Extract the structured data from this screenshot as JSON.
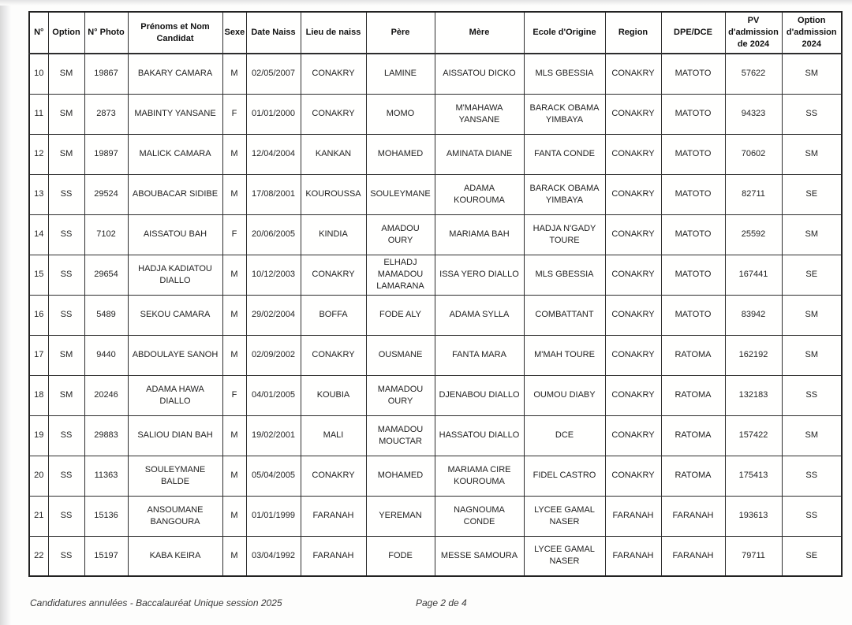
{
  "table": {
    "columns": [
      {
        "key": "n",
        "label": "N°"
      },
      {
        "key": "option",
        "label": "Option"
      },
      {
        "key": "photo",
        "label": "N° Photo"
      },
      {
        "key": "name",
        "label": "Prénoms et Nom\nCandidat"
      },
      {
        "key": "sex",
        "label": "Sexe"
      },
      {
        "key": "date",
        "label": "Date Naiss"
      },
      {
        "key": "place",
        "label": "Lieu de naiss"
      },
      {
        "key": "father",
        "label": "Père"
      },
      {
        "key": "mother",
        "label": "Mère"
      },
      {
        "key": "school",
        "label": "Ecole d'Origine"
      },
      {
        "key": "region",
        "label": "Region"
      },
      {
        "key": "dpe",
        "label": "DPE/DCE"
      },
      {
        "key": "pv",
        "label": "PV\nd'admission\nde 2024"
      },
      {
        "key": "opt2024",
        "label": "Option\nd'admission\n2024"
      }
    ],
    "rows": [
      {
        "n": "10",
        "option": "SM",
        "photo": "19867",
        "name": "BAKARY CAMARA",
        "sex": "M",
        "date": "02/05/2007",
        "place": "CONAKRY",
        "father": "LAMINE",
        "mother": "AISSATOU DICKO",
        "school": "MLS GBESSIA",
        "region": "CONAKRY",
        "dpe": "MATOTO",
        "pv": "57622",
        "opt2024": "SM"
      },
      {
        "n": "11",
        "option": "SM",
        "photo": "2873",
        "name": "MABINTY YANSANE",
        "sex": "F",
        "date": "01/01/2000",
        "place": "CONAKRY",
        "father": "MOMO",
        "mother": "M'MAHAWA\nYANSANE",
        "school": "BARACK OBAMA\nYIMBAYA",
        "region": "CONAKRY",
        "dpe": "MATOTO",
        "pv": "94323",
        "opt2024": "SS"
      },
      {
        "n": "12",
        "option": "SM",
        "photo": "19897",
        "name": "MALICK CAMARA",
        "sex": "M",
        "date": "12/04/2004",
        "place": "KANKAN",
        "father": "MOHAMED",
        "mother": "AMINATA DIANE",
        "school": "FANTA CONDE",
        "region": "CONAKRY",
        "dpe": "MATOTO",
        "pv": "70602",
        "opt2024": "SM"
      },
      {
        "n": "13",
        "option": "SS",
        "photo": "29524",
        "name": "ABOUBACAR SIDIBE",
        "sex": "M",
        "date": "17/08/2001",
        "place": "KOUROUSSA",
        "father": "SOULEYMANE",
        "mother": "ADAMA\nKOUROUMA",
        "school": "BARACK OBAMA\nYIMBAYA",
        "region": "CONAKRY",
        "dpe": "MATOTO",
        "pv": "82711",
        "opt2024": "SE"
      },
      {
        "n": "14",
        "option": "SS",
        "photo": "7102",
        "name": "AISSATOU BAH",
        "sex": "F",
        "date": "20/06/2005",
        "place": "KINDIA",
        "father": "AMADOU\nOURY",
        "mother": "MARIAMA BAH",
        "school": "HADJA N'GADY\nTOURE",
        "region": "CONAKRY",
        "dpe": "MATOTO",
        "pv": "25592",
        "opt2024": "SM"
      },
      {
        "n": "15",
        "option": "SS",
        "photo": "29654",
        "name": "HADJA KADIATOU\nDIALLO",
        "sex": "M",
        "date": "10/12/2003",
        "place": "CONAKRY",
        "father": "ELHADJ\nMAMADOU\nLAMARANA",
        "mother": "ISSA YERO DIALLO",
        "school": "MLS GBESSIA",
        "region": "CONAKRY",
        "dpe": "MATOTO",
        "pv": "167441",
        "opt2024": "SE"
      },
      {
        "n": "16",
        "option": "SS",
        "photo": "5489",
        "name": "SEKOU CAMARA",
        "sex": "M",
        "date": "29/02/2004",
        "place": "BOFFA",
        "father": "FODE ALY",
        "mother": "ADAMA SYLLA",
        "school": "COMBATTANT",
        "region": "CONAKRY",
        "dpe": "MATOTO",
        "pv": "83942",
        "opt2024": "SM"
      },
      {
        "n": "17",
        "option": "SM",
        "photo": "9440",
        "name": "ABDOULAYE SANOH",
        "sex": "M",
        "date": "02/09/2002",
        "place": "CONAKRY",
        "father": "OUSMANE",
        "mother": "FANTA MARA",
        "school": "M'MAH TOURE",
        "region": "CONAKRY",
        "dpe": "RATOMA",
        "pv": "162192",
        "opt2024": "SM"
      },
      {
        "n": "18",
        "option": "SM",
        "photo": "20246",
        "name": "ADAMA HAWA\nDIALLO",
        "sex": "F",
        "date": "04/01/2005",
        "place": "KOUBIA",
        "father": "MAMADOU\nOURY",
        "mother": "DJENABOU DIALLO",
        "school": "OUMOU DIABY",
        "region": "CONAKRY",
        "dpe": "RATOMA",
        "pv": "132183",
        "opt2024": "SS"
      },
      {
        "n": "19",
        "option": "SS",
        "photo": "29883",
        "name": "SALIOU DIAN BAH",
        "sex": "M",
        "date": "19/02/2001",
        "place": "MALI",
        "father": "MAMADOU\nMOUCTAR",
        "mother": "HASSATOU DIALLO",
        "school": "DCE",
        "region": "CONAKRY",
        "dpe": "RATOMA",
        "pv": "157422",
        "opt2024": "SM"
      },
      {
        "n": "20",
        "option": "SS",
        "photo": "11363",
        "name": "SOULEYMANE BALDE",
        "sex": "M",
        "date": "05/04/2005",
        "place": "CONAKRY",
        "father": "MOHAMED",
        "mother": "MARIAMA CIRE\nKOUROUMA",
        "school": "FIDEL CASTRO",
        "region": "CONAKRY",
        "dpe": "RATOMA",
        "pv": "175413",
        "opt2024": "SS"
      },
      {
        "n": "21",
        "option": "SS",
        "photo": "15136",
        "name": "ANSOUMANE\nBANGOURA",
        "sex": "M",
        "date": "01/01/1999",
        "place": "FARANAH",
        "father": "YEREMAN",
        "mother": "NAGNOUMA\nCONDE",
        "school": "LYCEE GAMAL\nNASER",
        "region": "FARANAH",
        "dpe": "FARANAH",
        "pv": "193613",
        "opt2024": "SS"
      },
      {
        "n": "22",
        "option": "SS",
        "photo": "15197",
        "name": "KABA KEIRA",
        "sex": "M",
        "date": "03/04/1992",
        "place": "FARANAH",
        "father": "FODE",
        "mother": "MESSE SAMOURA",
        "school": "LYCEE GAMAL\nNASER",
        "region": "FARANAH",
        "dpe": "FARANAH",
        "pv": "79711",
        "opt2024": "SE"
      }
    ]
  },
  "footer": {
    "caption": "Candidatures annulées - Baccalauréat Unique session 2025",
    "page": "Page 2 de 4"
  }
}
